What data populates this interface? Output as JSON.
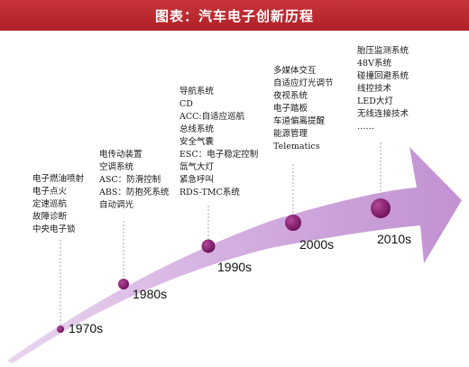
{
  "title": "图表：汽车电子创新历程",
  "colors": {
    "banner": "#b8252c",
    "arrow": "#c79bd6",
    "dot": "#8c1c75",
    "leader": "#a9a9a9"
  },
  "eras": [
    {
      "label": "1970s",
      "features": [
        "电子燃油喷射",
        "电子点火",
        "定速巡航",
        "故障诊断",
        "中央电子锁"
      ]
    },
    {
      "label": "1980s",
      "features": [
        "电传动装置",
        "空调系统",
        "ASC：防滑控制",
        "ABS：防抱死系统",
        "自动调光"
      ]
    },
    {
      "label": "1990s",
      "features": [
        "导航系统",
        "CD",
        "ACC:自适应巡航",
        "总线系统",
        "安全气囊",
        "ESC：电子稳定控制",
        "氙气大灯",
        "紧急呼叫",
        "RDS-TMC系统"
      ]
    },
    {
      "label": "2000s",
      "features": [
        "多媒体交互",
        "自适应灯光调节",
        "夜视系统",
        "电子踏板",
        "车道偏离提醒",
        "能源管理",
        "Telematics"
      ]
    },
    {
      "label": "2010s",
      "features": [
        "胎压监测系统",
        "48V系统",
        "碰撞回避系统",
        "线控技术",
        "LED大灯",
        "无线连接技术",
        "……"
      ]
    }
  ]
}
